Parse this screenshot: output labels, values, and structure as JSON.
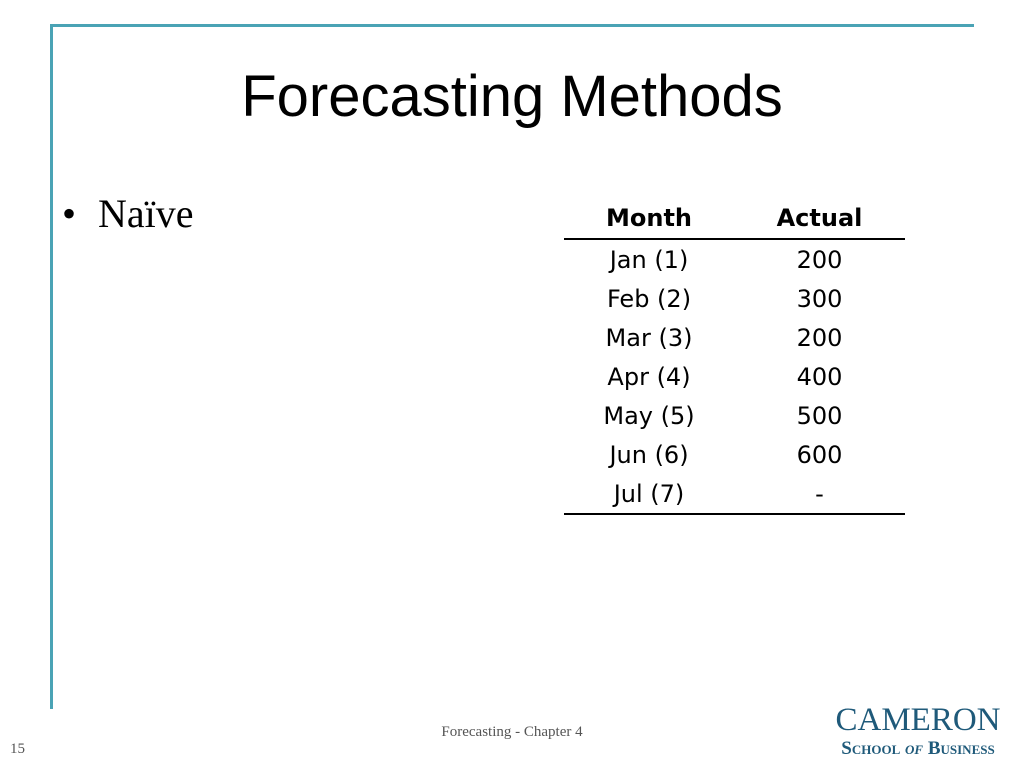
{
  "slide": {
    "title": "Forecasting Methods",
    "bullet_symbol": "•",
    "bullet_text": "Naïve"
  },
  "table": {
    "headers": [
      "Month",
      "Actual"
    ],
    "rows": [
      [
        "Jan (1)",
        "200"
      ],
      [
        "Feb (2)",
        "300"
      ],
      [
        "Mar (3)",
        "200"
      ],
      [
        "Apr (4)",
        "400"
      ],
      [
        "May (5)",
        "500"
      ],
      [
        "Jun (6)",
        "600"
      ],
      [
        "Jul (7)",
        "-"
      ]
    ]
  },
  "footer": {
    "text": "Forecasting - Chapter 4",
    "slide_number": "15"
  },
  "logo": {
    "line1": "CAMERON",
    "line2_a": "School",
    "line2_b": "of",
    "line2_c": "Business"
  },
  "colors": {
    "frame": "#4aa3b5",
    "logo": "#1f5a7a"
  }
}
